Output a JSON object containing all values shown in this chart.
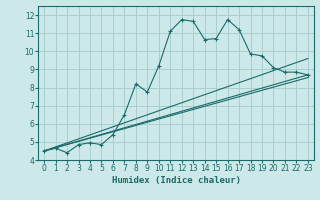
{
  "xlabel": "Humidex (Indice chaleur)",
  "background_color": "#cce8e8",
  "grid_color": "#aacfcf",
  "line_color": "#1a6b6b",
  "xlim": [
    -0.5,
    23.5
  ],
  "ylim": [
    4,
    12.5
  ],
  "xticks": [
    0,
    1,
    2,
    3,
    4,
    5,
    6,
    7,
    8,
    9,
    10,
    11,
    12,
    13,
    14,
    15,
    16,
    17,
    18,
    19,
    20,
    21,
    22,
    23
  ],
  "yticks": [
    4,
    5,
    6,
    7,
    8,
    9,
    10,
    11,
    12
  ],
  "series_main": {
    "x": [
      0,
      1,
      2,
      3,
      4,
      5,
      6,
      7,
      8,
      9,
      10,
      11,
      12,
      13,
      14,
      15,
      16,
      17,
      18,
      19,
      20,
      21,
      22,
      23
    ],
    "y": [
      4.5,
      4.65,
      4.4,
      4.85,
      4.95,
      4.85,
      5.4,
      6.5,
      8.2,
      7.75,
      9.2,
      11.1,
      11.75,
      11.65,
      10.65,
      10.7,
      11.75,
      11.2,
      9.85,
      9.75,
      9.1,
      8.85,
      8.85,
      8.7
    ]
  },
  "series_lines": [
    {
      "x": [
        0,
        23
      ],
      "y": [
        4.5,
        9.6
      ]
    },
    {
      "x": [
        0,
        23
      ],
      "y": [
        4.5,
        8.7
      ]
    },
    {
      "x": [
        0,
        23
      ],
      "y": [
        4.5,
        8.55
      ]
    }
  ]
}
